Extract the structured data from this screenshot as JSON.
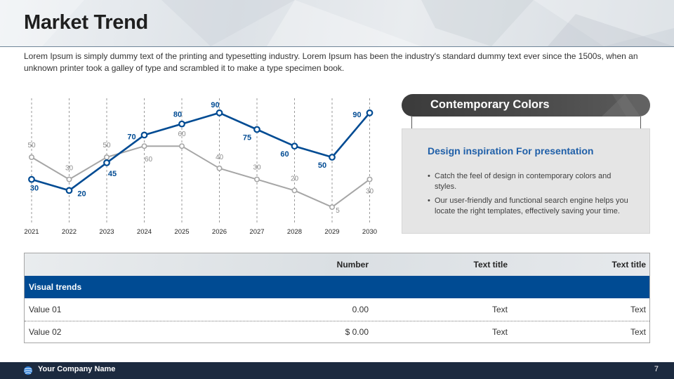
{
  "header": {
    "title": "Market Trend"
  },
  "intro": "Lorem Ipsum is simply dummy text of the printing and typesetting industry. Lorem Ipsum has been the industry's standard dummy text ever since the 1500s,  when an unknown printer took a galley of type and scrambled it to make a type specimen book.",
  "chart_data": {
    "type": "line",
    "x": [
      "2021",
      "2022",
      "2023",
      "2024",
      "2025",
      "2026",
      "2027",
      "2028",
      "2029",
      "2030"
    ],
    "series": [
      {
        "values": [
          30,
          20,
          45,
          70,
          80,
          90,
          75,
          60,
          50,
          90
        ]
      },
      {
        "values": [
          50,
          30,
          50,
          60,
          60,
          40,
          30,
          20,
          5,
          30
        ]
      }
    ],
    "ylim": [
      0,
      100
    ],
    "grid": "vertical dashed",
    "colors": [
      "#004b93",
      "#a6a6a6"
    ]
  },
  "panel": {
    "header": "Contemporary Colors",
    "title": "Design inspiration For presentation",
    "bullets": [
      "Catch the feel of design in contemporary colors and styles.",
      "Our user-friendly and functional search engine helps you locate the right templates, effectively saving your time."
    ]
  },
  "table": {
    "headers": [
      "",
      "Number",
      "Text title",
      "Text title"
    ],
    "band": "Visual trends",
    "rows": [
      [
        "Value 01",
        "0.00",
        "Text",
        "Text"
      ],
      [
        "Value 02",
        "$ 0.00",
        "Text",
        "Text"
      ]
    ]
  },
  "footer": {
    "company": "Your Company Name",
    "page": "7"
  }
}
